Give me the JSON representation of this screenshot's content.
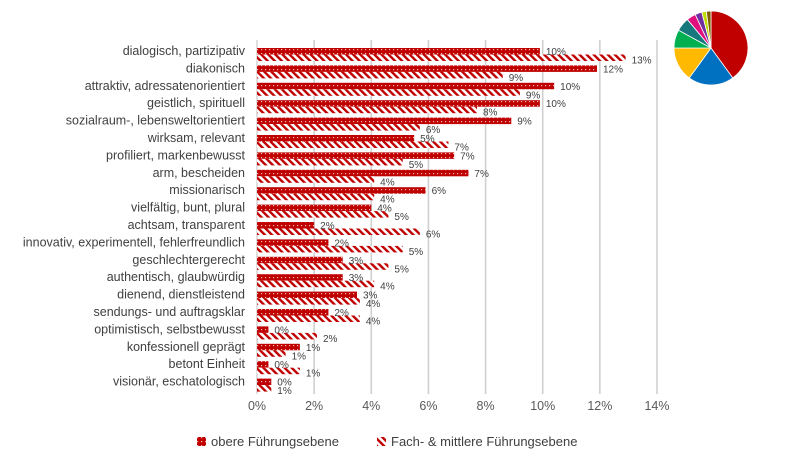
{
  "chart_data": [
    {
      "type": "bar",
      "orientation": "horizontal",
      "categories": [
        "dialogisch, partizipativ",
        "diakonisch",
        "attraktiv, adressatenorientiert",
        "geistlich, spirituell",
        "sozialraum-, lebensweltorientiert",
        "wirksam, relevant",
        "profiliert, markenbewusst",
        "arm, bescheiden",
        "missionarisch",
        "vielfältig, bunt, plural",
        "achtsam, transparent",
        "innovativ, experimentell, fehlerfreundlich",
        "geschlechtergerecht",
        "authentisch, glaubwürdig",
        "dienend, dienstleistend",
        "sendungs- und auftragsklar",
        "optimistisch, selbstbewusst",
        "konfessionell geprägt",
        "betont  Einheit",
        "visionär, eschatologisch"
      ],
      "series": [
        {
          "name": "obere Führungsebene",
          "color": "#C00000",
          "pattern": "dotted",
          "values": [
            9.9,
            11.9,
            10.4,
            9.9,
            8.9,
            5.5,
            6.9,
            7.4,
            5.9,
            4.0,
            2.0,
            2.5,
            3.0,
            3.0,
            3.5,
            2.5,
            0.4,
            1.5,
            0.4,
            0.5
          ],
          "labels": [
            "10%",
            "12%",
            "10%",
            "10%",
            "9%",
            "5%",
            "7%",
            "7%",
            "6%",
            "4%",
            "2%",
            "2%",
            "3%",
            "3%",
            "3%",
            "2%",
            "0%",
            "1%",
            "0%",
            "0%"
          ]
        },
        {
          "name": "Fach- & mittlere Führungsebene",
          "color": "#C00000",
          "pattern": "diagonal-stripes",
          "values": [
            12.9,
            8.6,
            9.2,
            7.7,
            5.7,
            6.7,
            5.1,
            4.1,
            4.1,
            4.6,
            5.7,
            5.1,
            4.6,
            4.1,
            3.6,
            3.6,
            2.1,
            1.0,
            1.5,
            0.5
          ],
          "labels": [
            "13%",
            "9%",
            "9%",
            "8%",
            "6%",
            "7%",
            "5%",
            "4%",
            "4%",
            "5%",
            "6%",
            "5%",
            "5%",
            "4%",
            "4%",
            "4%",
            "2%",
            "1%",
            "1%",
            "1%"
          ]
        }
      ],
      "x_ticks": [
        "0%",
        "2%",
        "4%",
        "6%",
        "8%",
        "10%",
        "12%",
        "14%"
      ],
      "xlim": [
        0,
        14
      ],
      "grid": true,
      "legend_position": "bottom"
    },
    {
      "type": "pie",
      "values": [
        40,
        20,
        15,
        8,
        6,
        4,
        3,
        2,
        2
      ],
      "colors": [
        "#C00000",
        "#0070C0",
        "#FFB900",
        "#00B050",
        "#14787C",
        "#E0107E",
        "#7030A0",
        "#C0DC00",
        "#7F6000"
      ]
    }
  ]
}
